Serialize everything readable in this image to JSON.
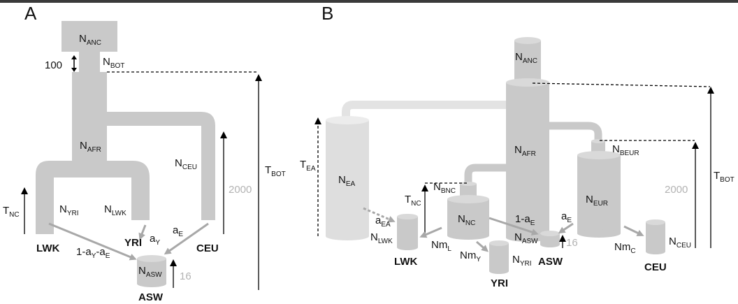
{
  "panels": {
    "a": {
      "letter": "A"
    },
    "b": {
      "letter": "B"
    }
  },
  "panel_a": {
    "n_anc": {
      "main": "N",
      "sub": "ANC"
    },
    "n_bot": {
      "main": "N",
      "sub": "BOT"
    },
    "bottleneck_length": "100",
    "n_afr": {
      "main": "N",
      "sub": "AFR"
    },
    "n_ceu": {
      "main": "N",
      "sub": "CEU"
    },
    "n_yri": {
      "main": "N",
      "sub": "YRI"
    },
    "n_lwk": {
      "main": "N",
      "sub": "LWK"
    },
    "n_asw": {
      "main": "N",
      "sub": "ASW"
    },
    "t_nc": {
      "main": "T",
      "sub": "NC"
    },
    "t_bot": {
      "main": "T",
      "sub": "BOT"
    },
    "time_2000": "2000",
    "time_16": "16",
    "a_y": {
      "main": "a",
      "sub": "Y"
    },
    "a_e": {
      "main": "a",
      "sub": "E"
    },
    "mix_rest": {
      "pre": "1-a",
      "sub1": "Y",
      "mid": "-a",
      "sub2": "E"
    },
    "pop_lwk": "LWK",
    "pop_yri": "YRI",
    "pop_ceu": "CEU",
    "pop_asw": "ASW"
  },
  "panel_b": {
    "n_anc": {
      "main": "N",
      "sub": "ANC"
    },
    "n_afr": {
      "main": "N",
      "sub": "AFR"
    },
    "n_ea": {
      "main": "N",
      "sub": "EA"
    },
    "t_ea": {
      "main": "T",
      "sub": "EA"
    },
    "n_beur": {
      "main": "N",
      "sub": "BEUR"
    },
    "n_eur": {
      "main": "N",
      "sub": "EUR"
    },
    "n_bnc": {
      "main": "N",
      "sub": "BNC"
    },
    "n_nc": {
      "main": "N",
      "sub": "NC"
    },
    "t_nc": {
      "main": "T",
      "sub": "NC"
    },
    "t_bot": {
      "main": "T",
      "sub": "BOT"
    },
    "time_2000": "2000",
    "time_16": "16",
    "a_ea": {
      "main": "a",
      "sub": "EA"
    },
    "a_e": {
      "main": "a",
      "sub": "E"
    },
    "one_minus_ae": {
      "pre": "1-a",
      "sub": "E"
    },
    "n_lwk": {
      "main": "N",
      "sub": "LWK"
    },
    "n_asw": {
      "main": "N",
      "sub": "ASW"
    },
    "n_yri": {
      "main": "N",
      "sub": "YRI"
    },
    "n_ceu": {
      "main": "N",
      "sub": "CEU"
    },
    "nm_l": {
      "main": "Nm",
      "sub": "L"
    },
    "nm_y": {
      "main": "Nm",
      "sub": "Y"
    },
    "nm_c": {
      "main": "Nm",
      "sub": "C"
    },
    "pop_lwk": "LWK",
    "pop_yri": "YRI",
    "pop_asw": "ASW",
    "pop_ceu": "CEU"
  }
}
